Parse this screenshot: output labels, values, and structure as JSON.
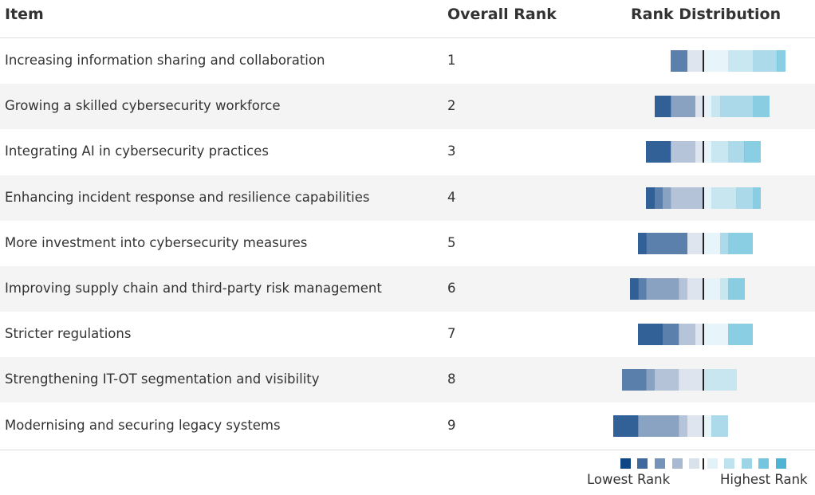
{
  "header": {
    "item": "Item",
    "overall_rank": "Overall Rank",
    "distribution": "Rank Distribution"
  },
  "legend": {
    "low_label": "Lowest Rank",
    "high_label": "Highest Rank",
    "colors": [
      "#0e4585",
      "#3f6a9e",
      "#7593b8",
      "#a8bad2",
      "#d9e1eb",
      "#e3f2f8",
      "#bfe3ee",
      "#9dd4e6",
      "#76c5de",
      "#4fb3d4"
    ]
  },
  "chart_data": {
    "type": "bar",
    "stacked": "diverging",
    "title": "",
    "levels": 10,
    "categories": [
      "Increasing information sharing and collaboration",
      "Growing a skilled cybersecurity workforce",
      "Integrating AI in cybersecurity practices",
      "Enhancing incident response and resilience capabilities",
      "More investment into cybersecurity measures",
      "Improving supply chain and third-party risk management",
      "Stricter regulations",
      "Strengthening IT-OT segmentation and visibility",
      "Modernising and securing legacy systems"
    ],
    "overall_rank": [
      "1",
      "2",
      "3",
      "4",
      "5",
      "6",
      "7",
      "8",
      "9"
    ],
    "distribution": [
      [
        0,
        2,
        0,
        0,
        2,
        3,
        3,
        3,
        1,
        0
      ],
      [
        2,
        0,
        3,
        0,
        1,
        1,
        1,
        4,
        2,
        0
      ],
      [
        3,
        0,
        0,
        3,
        1,
        1,
        2,
        2,
        2,
        0
      ],
      [
        1,
        1,
        1,
        4,
        0,
        1,
        3,
        2,
        1,
        0
      ],
      [
        1,
        5,
        0,
        0,
        2,
        2,
        0,
        1,
        3,
        0
      ],
      [
        1,
        1,
        4,
        1,
        2,
        2,
        1,
        0,
        2,
        0
      ],
      [
        3,
        2,
        0,
        2,
        1,
        3,
        0,
        0,
        3,
        0
      ],
      [
        0,
        3,
        1,
        3,
        3,
        0,
        4,
        0,
        0,
        0
      ],
      [
        3,
        0,
        5,
        1,
        2,
        1,
        0,
        2,
        0,
        0
      ]
    ]
  }
}
